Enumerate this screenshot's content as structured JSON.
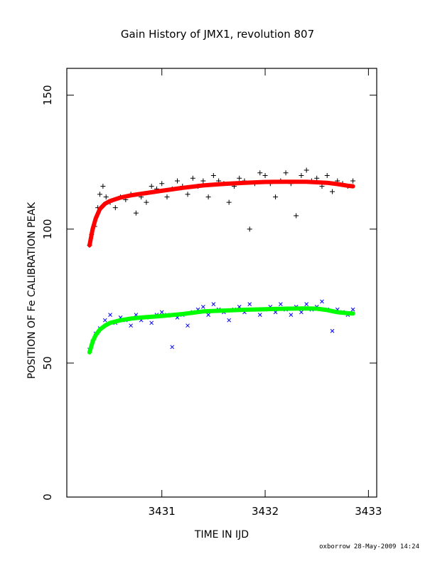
{
  "chart_data": {
    "type": "scatter",
    "title": "Gain History of JMX1, revolution 807",
    "xlabel": "TIME IN IJD",
    "ylabel": "POSITION OF Fe CALIBRATION PEAK",
    "xlim": [
      3430.08,
      3433.08
    ],
    "ylim": [
      0,
      160
    ],
    "xticks": [
      3431,
      3432,
      3433
    ],
    "yticks": [
      0,
      50,
      100,
      150
    ],
    "grid": false,
    "footer": "oxborrow 28-May-2009 14:24",
    "colors": {
      "upper_points": "#000000",
      "upper_fit": "#ff0000",
      "lower_points": "#0000ff",
      "lower_fit": "#00ff00"
    },
    "series": [
      {
        "marker": "plus",
        "color": "#000000",
        "x": [
          3430.3,
          3430.32,
          3430.35,
          3430.38,
          3430.4,
          3430.43,
          3430.46,
          3430.5,
          3430.55,
          3430.6,
          3430.65,
          3430.7,
          3430.75,
          3430.8,
          3430.85,
          3430.9,
          3430.95,
          3431.0,
          3431.05,
          3431.1,
          3431.15,
          3431.2,
          3431.25,
          3431.3,
          3431.35,
          3431.4,
          3431.45,
          3431.5,
          3431.55,
          3431.6,
          3431.65,
          3431.7,
          3431.75,
          3431.8,
          3431.85,
          3431.9,
          3431.95,
          3432.0,
          3432.05,
          3432.1,
          3432.15,
          3432.2,
          3432.25,
          3432.3,
          3432.35,
          3432.4,
          3432.45,
          3432.5,
          3432.55,
          3432.6,
          3432.65,
          3432.7,
          3432.75,
          3432.8,
          3432.85
        ],
        "y": [
          94,
          98,
          101,
          108,
          113,
          116,
          112,
          110,
          108,
          112,
          111,
          113,
          106,
          112,
          110,
          116,
          115,
          117,
          112,
          115,
          118,
          116,
          113,
          119,
          116,
          118,
          112,
          120,
          118,
          117,
          110,
          116,
          119,
          118,
          100,
          117,
          121,
          120,
          117,
          112,
          118,
          121,
          117,
          105,
          120,
          122,
          118,
          119,
          116,
          120,
          114,
          118,
          117,
          116,
          118
        ]
      },
      {
        "marker": "line",
        "color": "#ff0000",
        "x": [
          3430.3,
          3430.33,
          3430.36,
          3430.4,
          3430.45,
          3430.5,
          3430.6,
          3430.7,
          3430.8,
          3431.0,
          3431.2,
          3431.4,
          3431.6,
          3431.8,
          3432.0,
          3432.2,
          3432.4,
          3432.6,
          3432.7,
          3432.8,
          3432.85
        ],
        "y": [
          94,
          100,
          104,
          107.5,
          109.5,
          110.5,
          111.8,
          112.6,
          113.2,
          114.3,
          115.4,
          116.3,
          116.9,
          117.3,
          117.6,
          117.7,
          117.7,
          117.3,
          116.8,
          116.2,
          116.0
        ]
      },
      {
        "marker": "cross",
        "color": "#0000ff",
        "x": [
          3430.3,
          3430.33,
          3430.36,
          3430.4,
          3430.45,
          3430.5,
          3430.55,
          3430.6,
          3430.65,
          3430.7,
          3430.75,
          3430.8,
          3430.85,
          3430.9,
          3430.95,
          3431.0,
          3431.05,
          3431.1,
          3431.15,
          3431.2,
          3431.25,
          3431.3,
          3431.35,
          3431.4,
          3431.45,
          3431.5,
          3431.55,
          3431.6,
          3431.65,
          3431.7,
          3431.75,
          3431.8,
          3431.85,
          3431.9,
          3431.95,
          3432.0,
          3432.05,
          3432.1,
          3432.15,
          3432.2,
          3432.25,
          3432.3,
          3432.35,
          3432.4,
          3432.45,
          3432.5,
          3432.55,
          3432.6,
          3432.65,
          3432.7,
          3432.75,
          3432.8,
          3432.85
        ],
        "y": [
          55,
          58,
          61,
          63,
          66,
          68,
          65,
          67,
          66,
          64,
          68,
          66,
          67,
          65,
          68,
          69,
          68,
          56,
          67,
          68,
          64,
          69,
          70,
          71,
          68,
          72,
          70,
          69,
          66,
          70,
          71,
          69,
          72,
          70,
          68,
          70,
          71,
          69,
          72,
          70,
          68,
          71,
          69,
          72,
          70,
          71,
          73,
          70,
          62,
          70,
          69,
          68,
          70
        ]
      },
      {
        "marker": "line",
        "color": "#00ff00",
        "x": [
          3430.3,
          3430.33,
          3430.36,
          3430.4,
          3430.45,
          3430.5,
          3430.6,
          3430.7,
          3430.8,
          3431.0,
          3431.2,
          3431.4,
          3431.6,
          3431.8,
          3432.0,
          3432.2,
          3432.4,
          3432.5,
          3432.6,
          3432.7,
          3432.8,
          3432.85
        ],
        "y": [
          54,
          58,
          60.5,
          62.5,
          64,
          65,
          66,
          66.6,
          67,
          67.6,
          68.3,
          69.3,
          69.6,
          69.9,
          70.1,
          70.3,
          70.4,
          70.3,
          69.8,
          69.0,
          68.6,
          68.5
        ]
      }
    ]
  }
}
